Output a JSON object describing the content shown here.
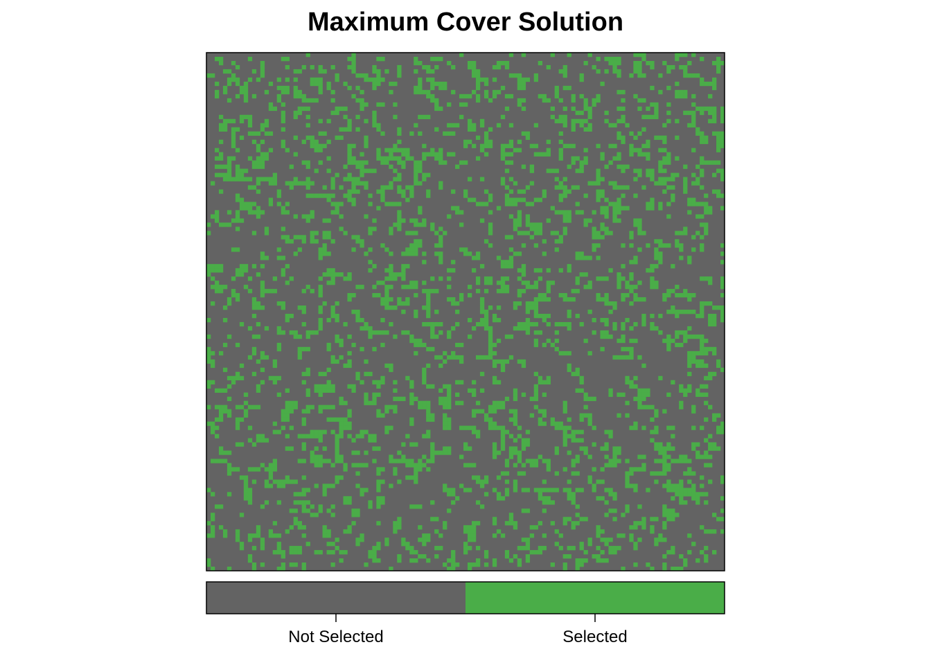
{
  "chart_data": {
    "type": "heatmap",
    "title": "Maximum Cover Solution",
    "xlabel": "",
    "ylabel": "",
    "grid": false,
    "axes_shown": false,
    "grid_size": [
      125,
      125
    ],
    "legend": {
      "position": "bottom",
      "categories": [
        {
          "label": "Not Selected",
          "value": 0,
          "color": "#636363"
        },
        {
          "label": "Selected",
          "value": 1,
          "color": "#4aad48"
        }
      ]
    },
    "selected_fraction": 0.14,
    "pattern_seed": 7
  }
}
